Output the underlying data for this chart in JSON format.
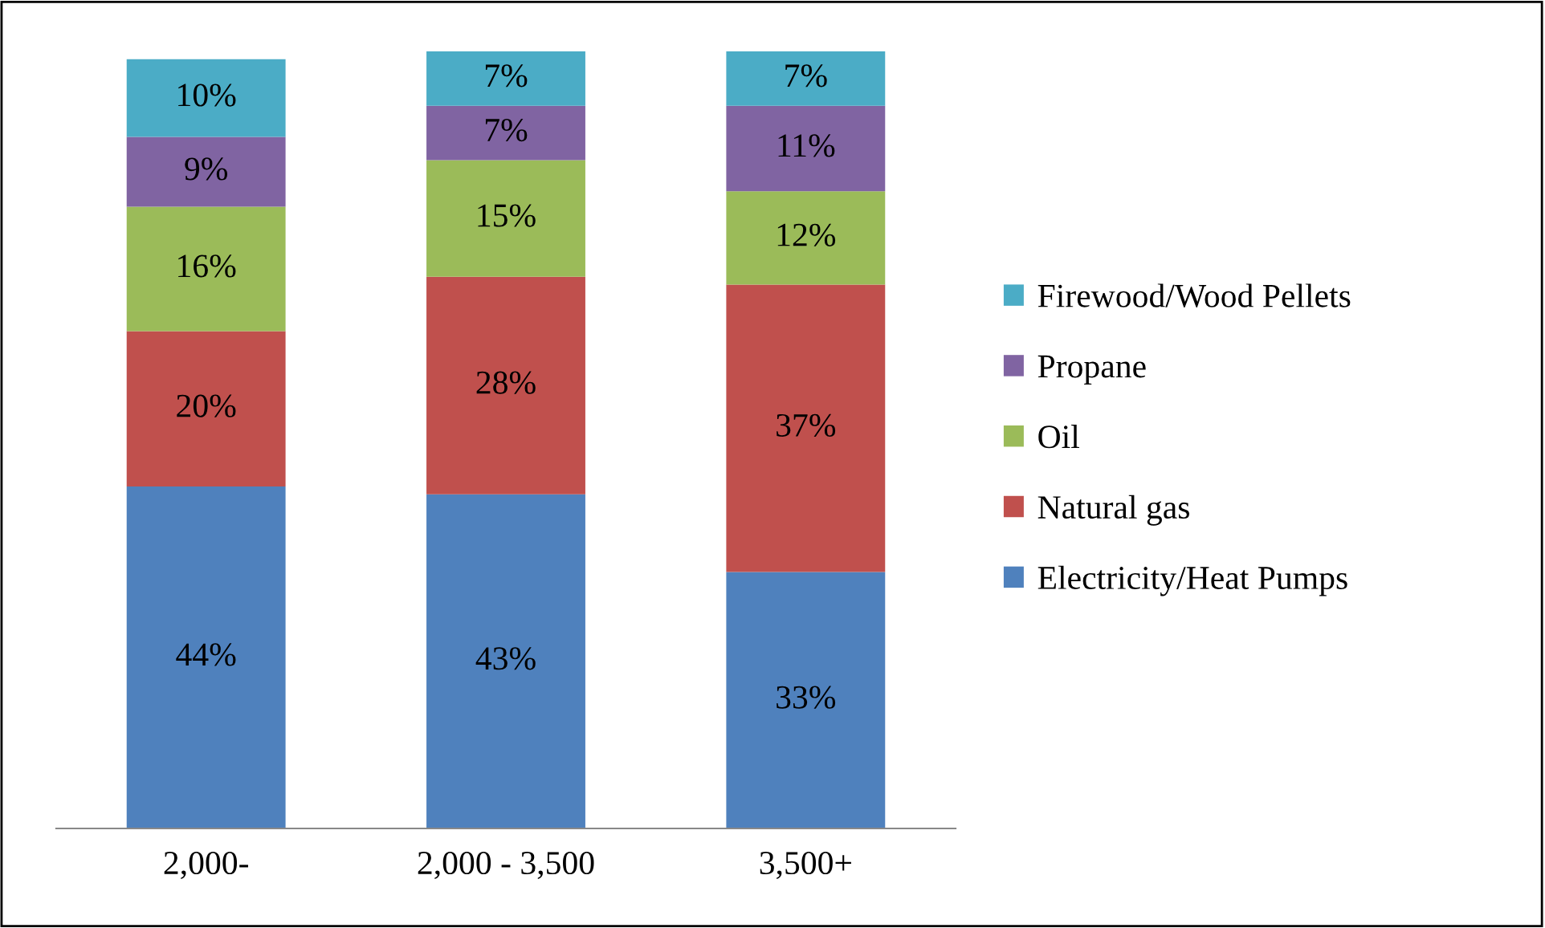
{
  "chart_data": {
    "type": "bar",
    "stacked": true,
    "categories": [
      "2,000-",
      "2,000 - 3,500",
      "3,500+"
    ],
    "series": [
      {
        "name": "Electricity/Heat Pumps",
        "color": "#4f81bd",
        "values": [
          44,
          43,
          33
        ],
        "value_labels": [
          "44%",
          "43%",
          "33%"
        ]
      },
      {
        "name": "Natural gas",
        "color": "#c0504d",
        "values": [
          20,
          28,
          37
        ],
        "value_labels": [
          "20%",
          "28%",
          "37%"
        ]
      },
      {
        "name": "Oil",
        "color": "#9bbb59",
        "values": [
          16,
          15,
          12
        ],
        "value_labels": [
          "16%",
          "15%",
          "12%"
        ]
      },
      {
        "name": "Propane",
        "color": "#8064a2",
        "values": [
          9,
          7,
          11
        ],
        "value_labels": [
          "9%",
          "7%",
          "11%"
        ]
      },
      {
        "name": "Firewood/Wood Pellets",
        "color": "#4bacc6",
        "values": [
          10,
          7,
          7
        ],
        "value_labels": [
          "10%",
          "7%",
          "7%"
        ]
      }
    ],
    "legend": "right",
    "grid": false
  }
}
